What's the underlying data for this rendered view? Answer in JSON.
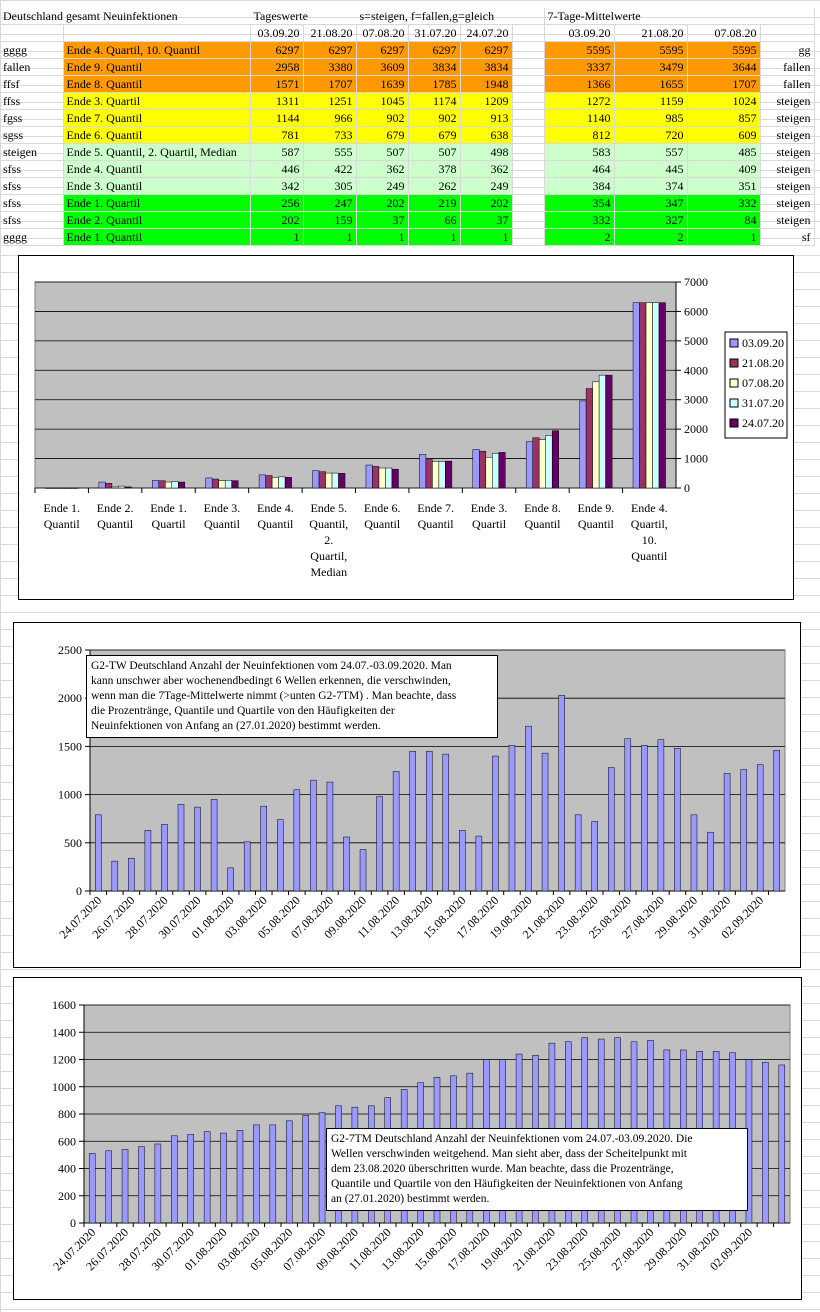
{
  "sheet": {
    "title": "Deutschland gesamt Neuinfektionen",
    "tageswerte_label": "Tageswerte",
    "legend_code": "s=steigen, f=fallen,g=gleich",
    "mittel_label": "7-Tage-Mittelwerte",
    "tw_dates": [
      "03.09.20",
      "21.08.20",
      "07.08.20",
      "31.07.20",
      "24.07.20"
    ],
    "tm_dates": [
      "03.09.20",
      "21.08.20",
      "07.08.20"
    ],
    "rows": [
      {
        "code": "gggg",
        "label": "Ende 4. Quartil, 10. Quantil",
        "tw": [
          "6297",
          "6297",
          "6297",
          "6297",
          "6297"
        ],
        "tm": [
          "5595",
          "5595",
          "5595"
        ],
        "trend": "gg",
        "color": "#ff9900"
      },
      {
        "code": "fallen",
        "label": "Ende 9. Quantil",
        "tw": [
          "2958",
          "3380",
          "3609",
          "3834",
          "3834"
        ],
        "tm": [
          "3337",
          "3479",
          "3644"
        ],
        "trend": "fallen",
        "color": "#ff9900"
      },
      {
        "code": "ffsf",
        "label": "Ende 8. Quantil",
        "tw": [
          "1571",
          "1707",
          "1639",
          "1785",
          "1948"
        ],
        "tm": [
          "1366",
          "1655",
          "1707"
        ],
        "trend": "fallen",
        "color": "#ff9900"
      },
      {
        "code": "ffss",
        "label": "Ende 3. Quartil",
        "tw": [
          "1311",
          "1251",
          "1045",
          "1174",
          "1209"
        ],
        "tm": [
          "1272",
          "1159",
          "1024"
        ],
        "trend": "steigen",
        "color": "#ffff00"
      },
      {
        "code": "fgss",
        "label": "Ende 7. Quantil",
        "tw": [
          "1144",
          "966",
          "902",
          "902",
          "913"
        ],
        "tm": [
          "1140",
          "985",
          "857"
        ],
        "trend": "steigen",
        "color": "#ffff00"
      },
      {
        "code": "sgss",
        "label": "Ende 6. Quantil",
        "tw": [
          "781",
          "733",
          "679",
          "679",
          "638"
        ],
        "tm": [
          "812",
          "720",
          "609"
        ],
        "trend": "steigen",
        "color": "#ffff00"
      },
      {
        "code": "steigen",
        "label": "Ende 5. Quantil, 2. Quartil, Median",
        "tw": [
          "587",
          "555",
          "507",
          "507",
          "498"
        ],
        "tm": [
          "583",
          "557",
          "485"
        ],
        "trend": "steigen",
        "color": "#ccffcc"
      },
      {
        "code": "sfss",
        "label": "Ende 4. Quantil",
        "tw": [
          "446",
          "422",
          "362",
          "378",
          "362"
        ],
        "tm": [
          "464",
          "445",
          "409"
        ],
        "trend": "steigen",
        "color": "#ccffcc"
      },
      {
        "code": "sfss",
        "label": "Ende 3. Quantil",
        "tw": [
          "342",
          "305",
          "249",
          "262",
          "249"
        ],
        "tm": [
          "384",
          "374",
          "351"
        ],
        "trend": "steigen",
        "color": "#ccffcc"
      },
      {
        "code": "sfss",
        "label": "Ende 1. Quartil",
        "tw": [
          "256",
          "247",
          "202",
          "219",
          "202"
        ],
        "tm": [
          "354",
          "347",
          "332"
        ],
        "trend": "steigen",
        "color": "#00ff00"
      },
      {
        "code": "sfss",
        "label": "Ende 2. Quantil",
        "tw": [
          "202",
          "159",
          "37",
          "66",
          "37"
        ],
        "tm": [
          "332",
          "327",
          "84"
        ],
        "trend": "steigen",
        "color": "#00ff00"
      },
      {
        "code": "gggg",
        "label": "Ende 1. Quantil",
        "tw": [
          "1",
          "1",
          "1",
          "1",
          "1"
        ],
        "tm": [
          "2",
          "2",
          "1"
        ],
        "trend": "sf",
        "color": "#00ff00"
      }
    ]
  },
  "chart_data": [
    {
      "type": "bar",
      "title": "",
      "categories": [
        [
          "Ende 1.",
          "Quantil"
        ],
        [
          "Ende 2.",
          "Quantil"
        ],
        [
          "Ende 1.",
          "Quartil"
        ],
        [
          "Ende 3.",
          "Quantil"
        ],
        [
          "Ende 4.",
          "Quantil"
        ],
        [
          "Ende 5.",
          "Quantil,",
          "2.",
          "Quartil,",
          "Median"
        ],
        [
          "Ende 6.",
          "Quantil"
        ],
        [
          "Ende 7.",
          "Quantil"
        ],
        [
          "Ende 3.",
          "Quartil"
        ],
        [
          "Ende 8.",
          "Quantil"
        ],
        [
          "Ende 9.",
          "Quantil"
        ],
        [
          "Ende 4.",
          "Quartil,",
          "10.",
          "Quantil"
        ]
      ],
      "series": [
        {
          "name": "03.09.20",
          "color": "#9999ff",
          "values": [
            1,
            202,
            256,
            342,
            446,
            587,
            781,
            1144,
            1311,
            1571,
            2958,
            6297
          ]
        },
        {
          "name": "21.08.20",
          "color": "#993366",
          "values": [
            1,
            159,
            247,
            305,
            422,
            555,
            733,
            966,
            1251,
            1707,
            3380,
            6297
          ]
        },
        {
          "name": "07.08.20",
          "color": "#ffffcc",
          "values": [
            1,
            37,
            202,
            249,
            362,
            507,
            679,
            902,
            1045,
            1639,
            3609,
            6297
          ]
        },
        {
          "name": "31.07.20",
          "color": "#ccffff",
          "values": [
            1,
            66,
            219,
            262,
            378,
            507,
            679,
            902,
            1174,
            1785,
            3834,
            6297
          ]
        },
        {
          "name": "24.07.20",
          "color": "#660066",
          "values": [
            1,
            37,
            202,
            249,
            362,
            498,
            638,
            913,
            1209,
            1948,
            3834,
            6297
          ]
        }
      ],
      "ylim": [
        0,
        7000
      ],
      "yticks": [
        "0",
        "1000",
        "2000",
        "3000",
        "4000",
        "5000",
        "6000",
        "7000"
      ],
      "y_axis_side": "right",
      "grid": true,
      "legend_position": "right"
    },
    {
      "type": "bar",
      "title": "",
      "annotation": [
        "G2-TW Deutschland Anzahl der Neuinfektionen vom 24.07.-03.09.2020. Man",
        "kann unschwer aber wochenendbedingt 6 Wellen erkennen, die verschwinden,",
        "wenn man die 7Tage-Mittelwerte nimmt (>unten G2-7TM) . Man beachte, dass",
        "die Prozentränge, Quantile und Quartile von den Häufigkeiten der",
        "Neuinfektionen von Anfang an (27.01.2020) bestimmt werden."
      ],
      "x_tick_labels": [
        "24.07.2020",
        "26.07.2020",
        "28.07.2020",
        "30.07.2020",
        "01.08.2020",
        "03.08.2020",
        "05.08.2020",
        "07.08.2020",
        "09.08.2020",
        "11.08.2020",
        "13.08.2020",
        "15.08.2020",
        "17.08.2020",
        "19.08.2020",
        "21.08.2020",
        "23.08.2020",
        "25.08.2020",
        "27.08.2020",
        "29.08.2020",
        "31.08.2020",
        "02.09.2020"
      ],
      "values": [
        790,
        310,
        340,
        630,
        690,
        900,
        870,
        950,
        240,
        510,
        880,
        740,
        1050,
        1150,
        1130,
        560,
        430,
        980,
        1240,
        1450,
        1450,
        1420,
        630,
        570,
        1400,
        1510,
        1710,
        1430,
        2030,
        790,
        720,
        1280,
        1580,
        1510,
        1570,
        1480,
        790,
        610,
        1220,
        1260,
        1310,
        1460
      ],
      "color": "#9999ff",
      "ylim": [
        0,
        2500
      ],
      "yticks": [
        "0",
        "500",
        "1000",
        "1500",
        "2000",
        "2500"
      ],
      "grid": true
    },
    {
      "type": "bar",
      "title": "",
      "annotation": [
        "G2-7TM Deutschland Anzahl der Neuinfektionen vom 24.07.-03.09.2020. Die",
        "Wellen verschwinden weitgehend. Man sieht aber, dass der Scheitelpunkt  mit",
        "dem 23.08.2020 überschritten wurde. Man beachte, dass die Prozentränge,",
        "Quantile und Quartile von den Häufigkeiten der Neuinfektionen von Anfang",
        "an (27.01.2020) bestimmt werden."
      ],
      "x_tick_labels": [
        "24.07.2020",
        "26.07.2020",
        "28.07.2020",
        "30.07.2020",
        "01.08.2020",
        "03.08.2020",
        "05.08.2020",
        "07.08.2020",
        "09.08.2020",
        "11.08.2020",
        "13.08.2020",
        "15.08.2020",
        "17.08.2020",
        "19.08.2020",
        "21.08.2020",
        "23.08.2020",
        "25.08.2020",
        "27.08.2020",
        "29.08.2020",
        "31.08.2020",
        "02.09.2020"
      ],
      "values": [
        510,
        530,
        540,
        560,
        580,
        640,
        650,
        670,
        660,
        680,
        720,
        720,
        750,
        790,
        810,
        860,
        850,
        860,
        920,
        980,
        1030,
        1070,
        1080,
        1100,
        1200,
        1200,
        1240,
        1230,
        1320,
        1330,
        1360,
        1350,
        1360,
        1330,
        1340,
        1270,
        1270,
        1260,
        1260,
        1250,
        1200,
        1180,
        1160
      ],
      "color": "#9999ff",
      "ylim": [
        0,
        1600
      ],
      "yticks": [
        "0",
        "200",
        "400",
        "600",
        "800",
        "1000",
        "1200",
        "1400",
        "1600"
      ],
      "grid": true
    }
  ]
}
